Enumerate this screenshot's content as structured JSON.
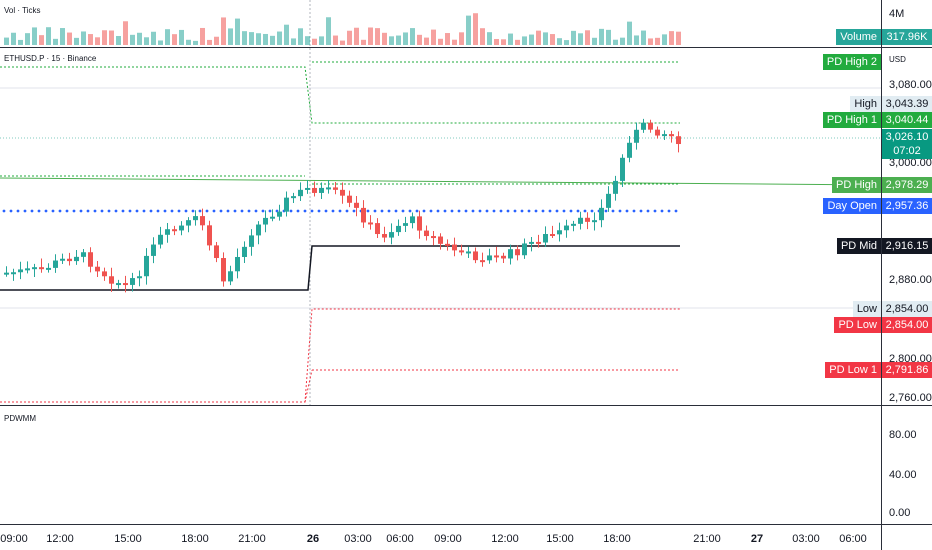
{
  "volume_pane": {
    "title": "Vol · Ticks",
    "axis_label": "4M",
    "volume_label": {
      "name": "Volume",
      "value": "317.96K",
      "color": "#26a69a"
    }
  },
  "price_pane": {
    "symbol_title": "ETHUSD.P · 15 · Binance",
    "currency": "USD",
    "axis_labels": [
      "3,080.00",
      "3,000.00",
      "2,880.00",
      "2,800.00",
      "2,760.00"
    ],
    "current_price": {
      "value": "3,026.10",
      "countdown": "07:02",
      "color": "#089981"
    },
    "levels": [
      {
        "name": "PD High 2",
        "value": "",
        "color": "#22ab3e",
        "text_color": "#ffffff"
      },
      {
        "name": "High",
        "value": "3,043.39",
        "color": "#e1ecf2",
        "text_color": "#131722"
      },
      {
        "name": "PD High 1",
        "value": "3,040.44",
        "color": "#22ab3e",
        "text_color": "#ffffff"
      },
      {
        "name": "PD High",
        "value": "2,978.29",
        "color": "#4caf50",
        "text_color": "#ffffff"
      },
      {
        "name": "Day Open",
        "value": "2,957.36",
        "color": "#2962ff",
        "text_color": "#ffffff"
      },
      {
        "name": "PD Mid",
        "value": "2,916.15",
        "color": "#131722",
        "text_color": "#ffffff"
      },
      {
        "name": "Low",
        "value": "2,854.00",
        "color": "#e1ecf2",
        "text_color": "#131722"
      },
      {
        "name": "PD Low",
        "value": "2,854.00",
        "color": "#f23645",
        "text_color": "#ffffff"
      },
      {
        "name": "PD Low 1",
        "value": "2,791.86",
        "color": "#f23645",
        "text_color": "#ffffff"
      }
    ],
    "colors": {
      "up": "#26a69a",
      "down": "#ef5350",
      "day_open_dots": "#2962ff"
    }
  },
  "indicator_pane": {
    "title": "PDWMM",
    "axis_labels": [
      "80.00",
      "40.00",
      "0.00"
    ]
  },
  "time_axis": {
    "labels": [
      {
        "text": "09:00",
        "bold": false
      },
      {
        "text": "12:00",
        "bold": false
      },
      {
        "text": "15:00",
        "bold": false
      },
      {
        "text": "18:00",
        "bold": false
      },
      {
        "text": "21:00",
        "bold": false
      },
      {
        "text": "26",
        "bold": true
      },
      {
        "text": "03:00",
        "bold": false
      },
      {
        "text": "06:00",
        "bold": false
      },
      {
        "text": "09:00",
        "bold": false
      },
      {
        "text": "12:00",
        "bold": false
      },
      {
        "text": "15:00",
        "bold": false
      },
      {
        "text": "18:00",
        "bold": false
      },
      {
        "text": "21:00",
        "bold": false
      },
      {
        "text": "27",
        "bold": true
      },
      {
        "text": "03:00",
        "bold": false
      },
      {
        "text": "06:00",
        "bold": false
      }
    ]
  }
}
